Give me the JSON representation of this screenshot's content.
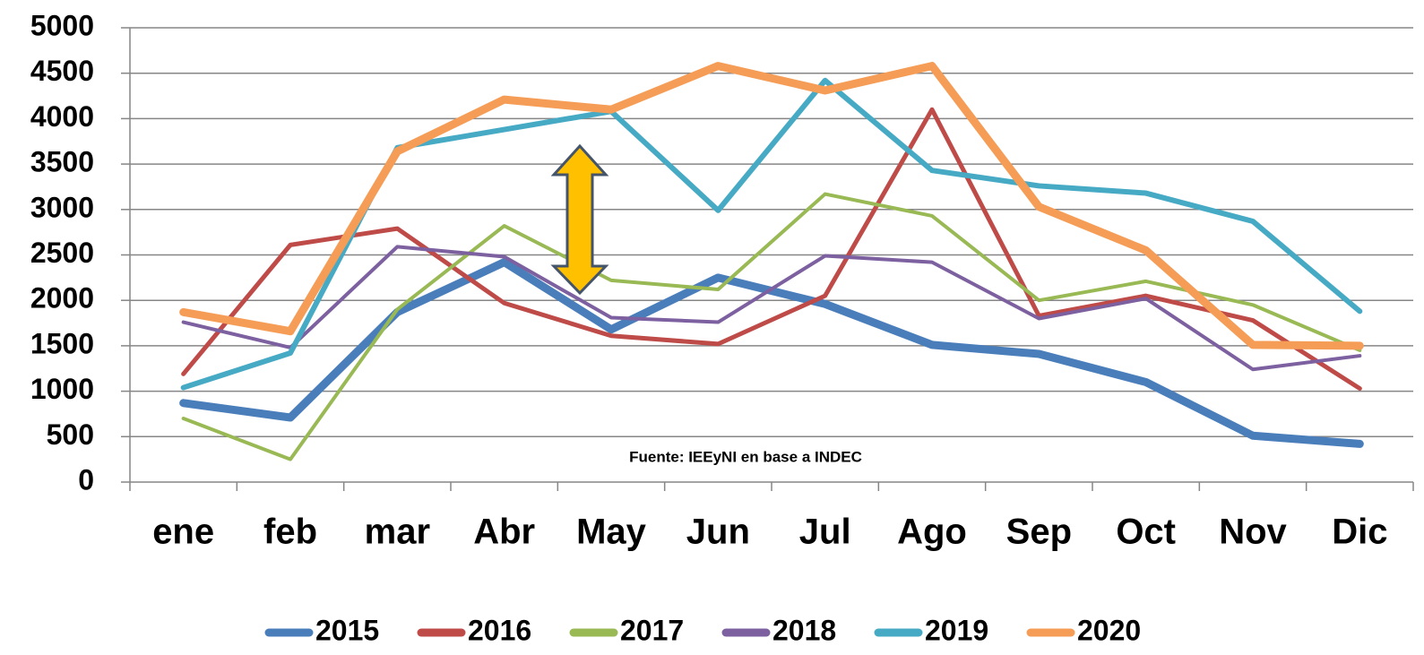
{
  "chart_data": {
    "type": "line",
    "categories": [
      "ene",
      "feb",
      "mar",
      "Abr",
      "May",
      "Jun",
      "Jul",
      "Ago",
      "Sep",
      "Oct",
      "Nov",
      "Dic"
    ],
    "series": [
      {
        "name": "2015",
        "color": "#4a7ebb",
        "width": 9,
        "values": [
          870,
          710,
          1870,
          2420,
          1680,
          2250,
          1960,
          1510,
          1410,
          1100,
          510,
          420
        ]
      },
      {
        "name": "2016",
        "color": "#be4b48",
        "width": 5,
        "values": [
          1190,
          2610,
          2790,
          1970,
          1610,
          1520,
          2050,
          4100,
          1830,
          2050,
          1780,
          1030
        ]
      },
      {
        "name": "2017",
        "color": "#98b954",
        "width": 4,
        "values": [
          700,
          250,
          1900,
          2820,
          2220,
          2120,
          3170,
          2930,
          2000,
          2210,
          1950,
          1450
        ]
      },
      {
        "name": "2018",
        "color": "#7d60a0",
        "width": 4,
        "values": [
          1760,
          1480,
          2590,
          2480,
          1810,
          1760,
          2490,
          2420,
          1800,
          2020,
          1240,
          1390
        ]
      },
      {
        "name": "2019",
        "color": "#46aac5",
        "width": 6,
        "values": [
          1040,
          1420,
          3680,
          3880,
          4080,
          2990,
          4420,
          3430,
          3260,
          3180,
          2870,
          1880
        ]
      },
      {
        "name": "2020",
        "color": "#f59d56",
        "width": 9,
        "values": [
          1870,
          1660,
          3640,
          4210,
          4100,
          4580,
          4310,
          4580,
          3030,
          2550,
          1510,
          1500
        ]
      }
    ],
    "ylim": [
      0,
      5000
    ],
    "yticks": [
      0,
      500,
      1000,
      1500,
      2000,
      2500,
      3000,
      3500,
      4000,
      4500,
      5000
    ],
    "grid": true,
    "legend": "bottom",
    "annotation": "Fuente: IEEyNI en base a INDEC"
  }
}
